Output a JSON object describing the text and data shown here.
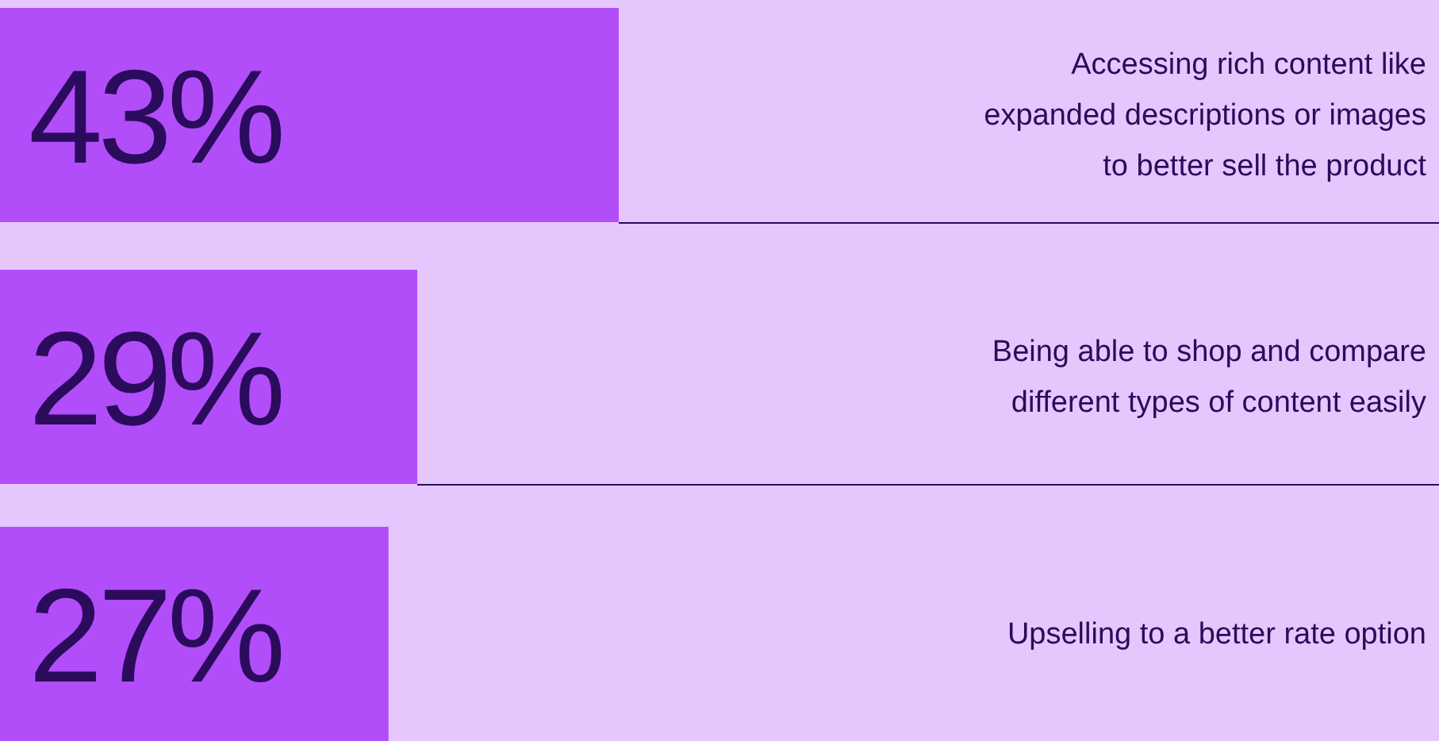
{
  "chart_data": {
    "type": "bar",
    "orientation": "horizontal",
    "categories": [
      "Accessing rich content like expanded descriptions or images to better sell the product",
      "Being able to shop and compare different types of content easily",
      "Upselling to a better rate option"
    ],
    "values": [
      43,
      29,
      27
    ],
    "value_labels": [
      "43%",
      "29%",
      "27%"
    ],
    "color": "#b24dfa",
    "xlim": [
      0,
      100
    ]
  }
}
